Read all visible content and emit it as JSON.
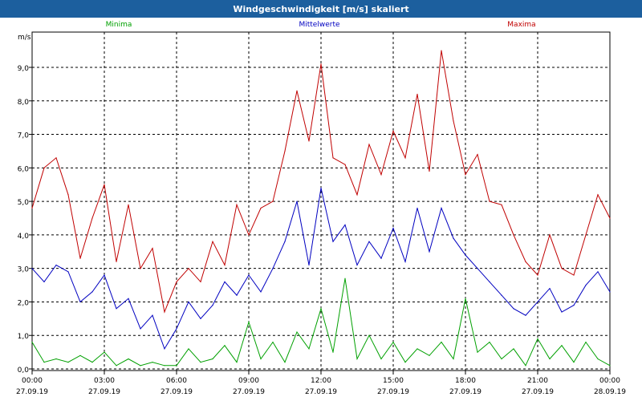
{
  "window": {
    "title": "Windgeschwindigkeit [m/s] skaliert"
  },
  "chart_data": {
    "type": "line",
    "title": "Windgeschwindigkeit [m/s] skaliert",
    "ylabel": "m/s",
    "ylim": [
      0,
      10
    ],
    "xlim": [
      0,
      24
    ],
    "grid": true,
    "legend_position": "top",
    "yticks": [
      {
        "value": 0,
        "label": "0,0"
      },
      {
        "value": 1,
        "label": "1,0"
      },
      {
        "value": 2,
        "label": "2,0"
      },
      {
        "value": 3,
        "label": "3,0"
      },
      {
        "value": 4,
        "label": "4,0"
      },
      {
        "value": 5,
        "label": "5,0"
      },
      {
        "value": 6,
        "label": "6,0"
      },
      {
        "value": 7,
        "label": "7,0"
      },
      {
        "value": 8,
        "label": "8,0"
      },
      {
        "value": 9,
        "label": "9,0"
      }
    ],
    "xticks": [
      {
        "value": 0,
        "time": "00:00",
        "date": "27.09.19"
      },
      {
        "value": 3,
        "time": "03:00",
        "date": "27.09.19"
      },
      {
        "value": 6,
        "time": "06:00",
        "date": "27.09.19"
      },
      {
        "value": 9,
        "time": "09:00",
        "date": "27.09.19"
      },
      {
        "value": 12,
        "time": "12:00",
        "date": "27.09.19"
      },
      {
        "value": 15,
        "time": "15:00",
        "date": "27.09.19"
      },
      {
        "value": 18,
        "time": "18:00",
        "date": "27.09.19"
      },
      {
        "value": 21,
        "time": "21:00",
        "date": "27.09.19"
      },
      {
        "value": 24,
        "time": "00:00",
        "date": "28.09.19"
      }
    ],
    "series": [
      {
        "name": "Minima",
        "color": "#00a000",
        "x": [
          0,
          0.5,
          1,
          1.5,
          2,
          2.5,
          3,
          3.5,
          4,
          4.5,
          5,
          5.5,
          6,
          6.5,
          7,
          7.5,
          8,
          8.5,
          9,
          9.5,
          10,
          10.5,
          11,
          11.5,
          12,
          12.5,
          13,
          13.5,
          14,
          14.5,
          15,
          15.5,
          16,
          16.5,
          17,
          17.5,
          18,
          18.5,
          19,
          19.5,
          20,
          20.5,
          21,
          21.5,
          22,
          22.5,
          23,
          23.5,
          24
        ],
        "values": [
          0.8,
          0.2,
          0.3,
          0.2,
          0.4,
          0.2,
          0.5,
          0.1,
          0.3,
          0.1,
          0.2,
          0.1,
          0.1,
          0.6,
          0.2,
          0.3,
          0.7,
          0.2,
          1.4,
          0.3,
          0.8,
          0.2,
          1.1,
          0.6,
          1.8,
          0.5,
          2.7,
          0.3,
          1.0,
          0.3,
          0.8,
          0.2,
          0.6,
          0.4,
          0.8,
          0.3,
          2.1,
          0.5,
          0.8,
          0.3,
          0.6,
          0.1,
          0.9,
          0.3,
          0.7,
          0.2,
          0.8,
          0.3,
          0.1
        ]
      },
      {
        "name": "Mittelwerte",
        "color": "#0000c0",
        "x": [
          0,
          0.5,
          1,
          1.5,
          2,
          2.5,
          3,
          3.5,
          4,
          4.5,
          5,
          5.5,
          6,
          6.5,
          7,
          7.5,
          8,
          8.5,
          9,
          9.5,
          10,
          10.5,
          11,
          11.5,
          12,
          12.5,
          13,
          13.5,
          14,
          14.5,
          15,
          15.5,
          16,
          16.5,
          17,
          17.5,
          18,
          18.5,
          19,
          19.5,
          20,
          20.5,
          21,
          21.5,
          22,
          22.5,
          23,
          23.5,
          24
        ],
        "values": [
          3.0,
          2.6,
          3.1,
          2.9,
          2.0,
          2.3,
          2.8,
          1.8,
          2.1,
          1.2,
          1.6,
          0.6,
          1.2,
          2.0,
          1.5,
          1.9,
          2.6,
          2.2,
          2.8,
          2.3,
          3.0,
          3.8,
          5.0,
          3.1,
          5.4,
          3.8,
          4.3,
          3.1,
          3.8,
          3.3,
          4.2,
          3.2,
          4.8,
          3.5,
          4.8,
          3.9,
          3.4,
          3.0,
          2.6,
          2.2,
          1.8,
          1.6,
          2.0,
          2.4,
          1.7,
          1.9,
          2.5,
          2.9,
          2.3
        ]
      },
      {
        "name": "Maxima",
        "color": "#c00000",
        "x": [
          0,
          0.5,
          1,
          1.5,
          2,
          2.5,
          3,
          3.5,
          4,
          4.5,
          5,
          5.5,
          6,
          6.5,
          7,
          7.5,
          8,
          8.5,
          9,
          9.5,
          10,
          10.5,
          11,
          11.5,
          12,
          12.5,
          13,
          13.5,
          14,
          14.5,
          15,
          15.5,
          16,
          16.5,
          17,
          17.5,
          18,
          18.5,
          19,
          19.5,
          20,
          20.5,
          21,
          21.5,
          22,
          22.5,
          23,
          23.5,
          24
        ],
        "values": [
          4.8,
          6.0,
          6.3,
          5.2,
          3.3,
          4.5,
          5.5,
          3.2,
          4.9,
          3.0,
          3.6,
          1.7,
          2.6,
          3.0,
          2.6,
          3.8,
          3.1,
          4.9,
          4.0,
          4.8,
          5.0,
          6.5,
          8.3,
          6.8,
          9.1,
          6.3,
          6.1,
          5.2,
          6.7,
          5.8,
          7.1,
          6.3,
          8.2,
          5.9,
          9.5,
          7.4,
          5.8,
          6.4,
          5.0,
          4.9,
          4.0,
          3.2,
          2.8,
          4.0,
          3.0,
          2.8,
          4.0,
          5.2,
          4.5
        ]
      }
    ]
  }
}
